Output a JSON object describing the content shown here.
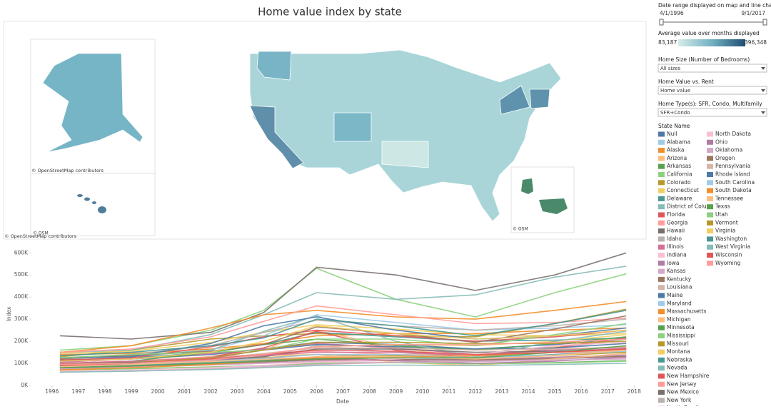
{
  "title": "Home value index by state",
  "map": {
    "attributions": [
      "© OpenStreetMap contributors",
      "© OSM",
      "© OpenStreetMap contributors",
      "© OSM"
    ]
  },
  "filters": {
    "date_range": {
      "label": "Date range displayed on map and line chart",
      "start": "4/1/1996",
      "end": "9/1/2017"
    },
    "color_scale": {
      "label": "Average value over months displayed",
      "min": "83,187",
      "max": "396,348"
    },
    "dropdowns": [
      {
        "label": "Home Size (Number of Bedrooms)",
        "value": "All sizes"
      },
      {
        "label": "Home Value vs. Rent",
        "value": "Home value"
      },
      {
        "label": "Home Type(s): SFR, Condo, Multifamily",
        "value": "SFR+Condo"
      }
    ]
  },
  "chart_data": {
    "type": "line",
    "x_label": "Date",
    "y_label": "Index",
    "legend_title": "State Name",
    "x": [
      1996.3,
      1999,
      2002,
      2004,
      2006,
      2009,
      2012,
      2015,
      2017.7
    ],
    "xlim": [
      1995.25,
      2018.45
    ],
    "xticks": [
      1996,
      1997,
      1998,
      1999,
      2000,
      2001,
      2002,
      2003,
      2004,
      2005,
      2006,
      2007,
      2008,
      2009,
      2010,
      2011,
      2012,
      2013,
      2014,
      2015,
      2016,
      2017,
      2018
    ],
    "ylim": [
      0,
      630000
    ],
    "yticks": [
      {
        "value": 0,
        "label": "0K"
      },
      {
        "value": 100000,
        "label": "100K"
      },
      {
        "value": 200000,
        "label": "200K"
      },
      {
        "value": 300000,
        "label": "300K"
      },
      {
        "value": 400000,
        "label": "400K"
      },
      {
        "value": 500000,
        "label": "500K"
      },
      {
        "value": 600000,
        "label": "600K"
      }
    ],
    "series": [
      {
        "name": "Null",
        "color": "#4e79a7",
        "values": [
          110000,
          120000,
          140000,
          165000,
          195000,
          185000,
          165000,
          185000,
          210000
        ]
      },
      {
        "name": "Alabama",
        "color": "#a0cbe8",
        "values": [
          85000,
          92000,
          100000,
          108000,
          122000,
          125000,
          115000,
          120000,
          130000
        ]
      },
      {
        "name": "Alaska",
        "color": "#f28e2b",
        "values": [
          140000,
          145000,
          165000,
          190000,
          225000,
          235000,
          235000,
          250000,
          260000
        ]
      },
      {
        "name": "Arizona",
        "color": "#ffbe7d",
        "values": [
          100000,
          110000,
          130000,
          160000,
          250000,
          170000,
          125000,
          175000,
          215000
        ]
      },
      {
        "name": "Arkansas",
        "color": "#59a14f",
        "values": [
          70000,
          76000,
          83000,
          90000,
          100000,
          103000,
          98000,
          103000,
          112000
        ]
      },
      {
        "name": "California",
        "color": "#8cd17d",
        "values": [
          160000,
          180000,
          250000,
          340000,
          530000,
          390000,
          310000,
          420000,
          505000
        ]
      },
      {
        "name": "Colorado",
        "color": "#b6992d",
        "values": [
          130000,
          160000,
          210000,
          225000,
          235000,
          225000,
          220000,
          280000,
          345000
        ]
      },
      {
        "name": "Connecticut",
        "color": "#f1ce63",
        "values": [
          145000,
          155000,
          195000,
          240000,
          275000,
          255000,
          230000,
          225000,
          235000
        ]
      },
      {
        "name": "Delaware",
        "color": "#499894",
        "values": [
          115000,
          125000,
          150000,
          185000,
          240000,
          220000,
          200000,
          205000,
          215000
        ]
      },
      {
        "name": "District of Colu…",
        "color": "#86bcb6",
        "values": [
          150000,
          160000,
          230000,
          320000,
          420000,
          390000,
          410000,
          490000,
          540000
        ]
      },
      {
        "name": "Florida",
        "color": "#e15759",
        "values": [
          90000,
          100000,
          130000,
          170000,
          245000,
          160000,
          125000,
          170000,
          215000
        ]
      },
      {
        "name": "Georgia",
        "color": "#ff9d9a",
        "values": [
          100000,
          110000,
          130000,
          140000,
          155000,
          140000,
          115000,
          140000,
          165000
        ]
      },
      {
        "name": "Hawaii",
        "color": "#79706e",
        "values": [
          225000,
          210000,
          240000,
          330000,
          535000,
          500000,
          430000,
          500000,
          600000
        ]
      },
      {
        "name": "Idaho",
        "color": "#bab0ac",
        "values": [
          100000,
          105000,
          115000,
          130000,
          180000,
          150000,
          125000,
          165000,
          210000
        ]
      },
      {
        "name": "Illinois",
        "color": "#d37295",
        "values": [
          105000,
          120000,
          145000,
          165000,
          190000,
          170000,
          140000,
          160000,
          175000
        ]
      },
      {
        "name": "Indiana",
        "color": "#fabfd2",
        "values": [
          80000,
          88000,
          95000,
          100000,
          107000,
          103000,
          100000,
          110000,
          125000
        ]
      },
      {
        "name": "Iowa",
        "color": "#b07aa1",
        "values": [
          75000,
          85000,
          95000,
          105000,
          115000,
          117000,
          118000,
          128000,
          138000
        ]
      },
      {
        "name": "Kansas",
        "color": "#d4a6c8",
        "values": [
          75000,
          83000,
          92000,
          100000,
          110000,
          112000,
          110000,
          120000,
          132000
        ]
      },
      {
        "name": "Kentucky",
        "color": "#9d7660",
        "values": [
          80000,
          88000,
          100000,
          108000,
          117000,
          117000,
          115000,
          122000,
          132000
        ]
      },
      {
        "name": "Louisiana",
        "color": "#d7b5a6",
        "values": [
          80000,
          88000,
          100000,
          112000,
          130000,
          140000,
          140000,
          150000,
          158000
        ]
      },
      {
        "name": "Maine",
        "color": "#4e79a7",
        "values": [
          90000,
          100000,
          125000,
          160000,
          185000,
          175000,
          165000,
          170000,
          190000
        ]
      },
      {
        "name": "Maryland",
        "color": "#a0cbe8",
        "values": [
          125000,
          130000,
          160000,
          225000,
          320000,
          285000,
          250000,
          260000,
          275000
        ]
      },
      {
        "name": "Massachusetts",
        "color": "#f28e2b",
        "values": [
          150000,
          180000,
          260000,
          320000,
          340000,
          310000,
          300000,
          340000,
          380000
        ]
      },
      {
        "name": "Michigan",
        "color": "#ffbe7d",
        "values": [
          85000,
          105000,
          125000,
          135000,
          140000,
          105000,
          90000,
          120000,
          145000
        ]
      },
      {
        "name": "Minnesota",
        "color": "#59a14f",
        "values": [
          95000,
          110000,
          150000,
          185000,
          210000,
          180000,
          160000,
          190000,
          220000
        ]
      },
      {
        "name": "Mississippi",
        "color": "#8cd17d",
        "values": [
          70000,
          76000,
          84000,
          90000,
          100000,
          103000,
          98000,
          102000,
          110000
        ]
      },
      {
        "name": "Missouri",
        "color": "#b6992d",
        "values": [
          85000,
          93000,
          110000,
          125000,
          140000,
          135000,
          125000,
          135000,
          150000
        ]
      },
      {
        "name": "Montana",
        "color": "#f1ce63",
        "values": [
          95000,
          105000,
          120000,
          140000,
          175000,
          185000,
          180000,
          200000,
          230000
        ]
      },
      {
        "name": "Nebraska",
        "color": "#499894",
        "values": [
          80000,
          90000,
          105000,
          115000,
          125000,
          125000,
          125000,
          140000,
          155000
        ]
      },
      {
        "name": "Nevada",
        "color": "#86bcb6",
        "values": [
          125000,
          135000,
          160000,
          245000,
          315000,
          200000,
          130000,
          200000,
          245000
        ]
      },
      {
        "name": "New Hampshire",
        "color": "#e15759",
        "values": [
          115000,
          125000,
          175000,
          220000,
          250000,
          225000,
          200000,
          220000,
          250000
        ]
      },
      {
        "name": "New Jersey",
        "color": "#ff9d9a",
        "values": [
          150000,
          165000,
          220000,
          290000,
          360000,
          320000,
          280000,
          285000,
          305000
        ]
      },
      {
        "name": "New Mexico",
        "color": "#79706e",
        "values": [
          100000,
          105000,
          115000,
          130000,
          165000,
          165000,
          150000,
          155000,
          165000
        ]
      },
      {
        "name": "New York",
        "color": "#bab0ac",
        "values": [
          125000,
          140000,
          180000,
          240000,
          295000,
          270000,
          250000,
          270000,
          300000
        ]
      },
      {
        "name": "North Carolina",
        "color": "#d37295",
        "values": [
          100000,
          110000,
          125000,
          135000,
          150000,
          150000,
          135000,
          150000,
          170000
        ]
      },
      {
        "name": "North Dakota",
        "color": "#fabfd2",
        "values": [
          65000,
          70000,
          80000,
          90000,
          105000,
          120000,
          140000,
          180000,
          195000
        ]
      },
      {
        "name": "Ohio",
        "color": "#b07aa1",
        "values": [
          90000,
          100000,
          115000,
          122000,
          125000,
          112000,
          100000,
          110000,
          128000
        ]
      },
      {
        "name": "Oklahoma",
        "color": "#d4a6c8",
        "values": [
          60000,
          65000,
          75000,
          85000,
          95000,
          105000,
          108000,
          115000,
          120000
        ]
      },
      {
        "name": "Oregon",
        "color": "#9d7660",
        "values": [
          120000,
          135000,
          155000,
          185000,
          265000,
          235000,
          195000,
          255000,
          315000
        ]
      },
      {
        "name": "Pennsylvania",
        "color": "#d7b5a6",
        "values": [
          95000,
          100000,
          120000,
          145000,
          170000,
          170000,
          160000,
          165000,
          175000
        ]
      },
      {
        "name": "Rhode Island",
        "color": "#4e79a7",
        "values": [
          125000,
          130000,
          190000,
          270000,
          310000,
          250000,
          210000,
          225000,
          260000
        ]
      },
      {
        "name": "South Carolina",
        "color": "#a0cbe8",
        "values": [
          85000,
          95000,
          110000,
          122000,
          140000,
          140000,
          125000,
          138000,
          155000
        ]
      },
      {
        "name": "South Dakota",
        "color": "#f28e2b",
        "values": [
          70000,
          80000,
          95000,
          110000,
          125000,
          130000,
          135000,
          150000,
          165000
        ]
      },
      {
        "name": "Tennessee",
        "color": "#ffbe7d",
        "values": [
          85000,
          95000,
          108000,
          118000,
          130000,
          130000,
          120000,
          135000,
          160000
        ]
      },
      {
        "name": "Texas",
        "color": "#59a14f",
        "values": [
          80000,
          88000,
          100000,
          110000,
          120000,
          125000,
          125000,
          150000,
          180000
        ]
      },
      {
        "name": "Utah",
        "color": "#8cd17d",
        "values": [
          125000,
          140000,
          150000,
          160000,
          210000,
          210000,
          180000,
          230000,
          280000
        ]
      },
      {
        "name": "Vermont",
        "color": "#b6992d",
        "values": [
          95000,
          100000,
          125000,
          160000,
          195000,
          195000,
          190000,
          190000,
          200000
        ]
      },
      {
        "name": "Virginia",
        "color": "#f1ce63",
        "values": [
          110000,
          120000,
          150000,
          200000,
          270000,
          235000,
          210000,
          225000,
          250000
        ]
      },
      {
        "name": "Washington",
        "color": "#499894",
        "values": [
          135000,
          150000,
          180000,
          215000,
          300000,
          270000,
          225000,
          280000,
          340000
        ]
      },
      {
        "name": "West Virginia",
        "color": "#86bcb6",
        "values": [
          60000,
          65000,
          72000,
          80000,
          90000,
          92000,
          90000,
          95000,
          100000
        ]
      },
      {
        "name": "Wisconsin",
        "color": "#e15759",
        "values": [
          90000,
          100000,
          120000,
          140000,
          160000,
          155000,
          140000,
          150000,
          165000
        ]
      },
      {
        "name": "Wyoming",
        "color": "#ff9d9a",
        "values": [
          95000,
          100000,
          115000,
          140000,
          175000,
          185000,
          185000,
          195000,
          210000
        ]
      }
    ]
  }
}
